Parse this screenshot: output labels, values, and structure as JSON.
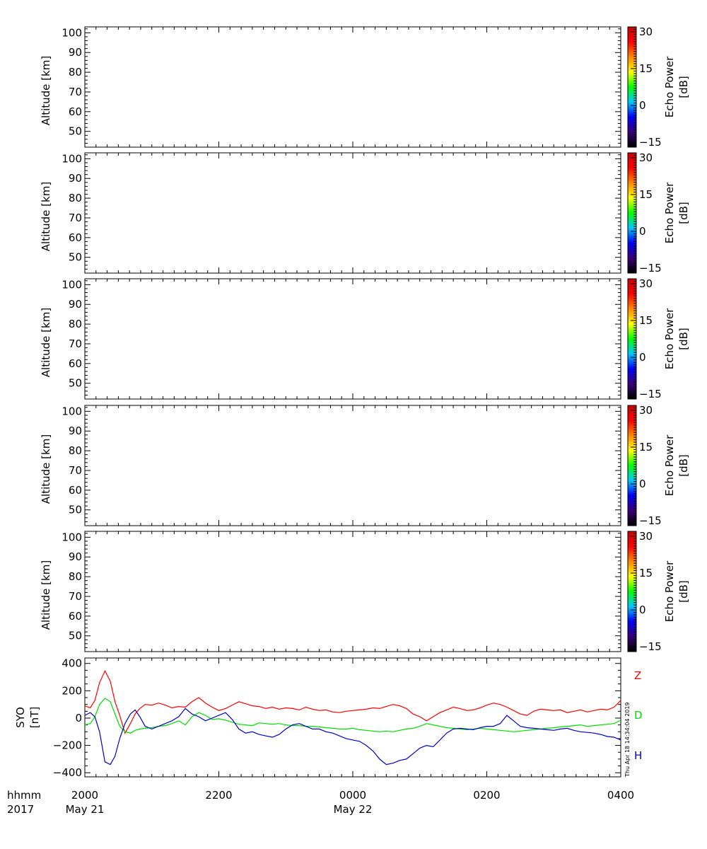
{
  "panels": [
    {
      "ylabel": "Altitude [km]",
      "yticks": [
        "50",
        "60",
        "70",
        "80",
        "90",
        "100"
      ],
      "ylim": [
        42,
        103
      ],
      "colorbar": {
        "label_line1": "Echo Power",
        "label_line2": "[dB]",
        "ticks": [
          "−15",
          "0",
          "15",
          "30"
        ]
      }
    },
    {
      "ylabel": "Altitude [km]",
      "yticks": [
        "50",
        "60",
        "70",
        "80",
        "90",
        "100"
      ],
      "ylim": [
        42,
        103
      ],
      "colorbar": {
        "label_line1": "Echo Power",
        "label_line2": "[dB]",
        "ticks": [
          "−15",
          "0",
          "15",
          "30"
        ]
      }
    },
    {
      "ylabel": "Altitude [km]",
      "yticks": [
        "50",
        "60",
        "70",
        "80",
        "90",
        "100"
      ],
      "ylim": [
        42,
        103
      ],
      "colorbar": {
        "label_line1": "Echo Power",
        "label_line2": "[dB]",
        "ticks": [
          "−15",
          "0",
          "15",
          "30"
        ]
      }
    },
    {
      "ylabel": "Altitude [km]",
      "yticks": [
        "50",
        "60",
        "70",
        "80",
        "90",
        "100"
      ],
      "ylim": [
        42,
        103
      ],
      "colorbar": {
        "label_line1": "Echo Power",
        "label_line2": "[dB]",
        "ticks": [
          "−15",
          "0",
          "15",
          "30"
        ]
      }
    },
    {
      "ylabel": "Altitude [km]",
      "yticks": [
        "50",
        "60",
        "70",
        "80",
        "90",
        "100"
      ],
      "ylim": [
        42,
        103
      ],
      "colorbar": {
        "label_line1": "Echo Power",
        "label_line2": "[dB]",
        "ticks": [
          "−15",
          "0",
          "15",
          "30"
        ]
      }
    }
  ],
  "colorbar_range": [
    -17,
    32
  ],
  "colormap": [
    "#000000",
    "#3a007a",
    "#0000ff",
    "#00c8ff",
    "#00ff00",
    "#ffff00",
    "#ff8800",
    "#ff0000",
    "#cc0000"
  ],
  "bottom_axis": {
    "row1_label": "hhmm",
    "row2_label": "2017",
    "ticks": [
      {
        "hour": 0,
        "label": "2000",
        "date": "May 21"
      },
      {
        "hour": 2,
        "label": "2200",
        "date": ""
      },
      {
        "hour": 4,
        "label": "0000",
        "date": "May 22"
      },
      {
        "hour": 6,
        "label": "0200",
        "date": ""
      },
      {
        "hour": 8,
        "label": "0400",
        "date": ""
      }
    ]
  },
  "timestamp": "Thu Apr 18 14:34:04 2019",
  "chart_data": [
    {
      "type": "heatmap",
      "ylabel": "Altitude [km]",
      "ylim": [
        42,
        103
      ],
      "colorbar_label": "Echo Power [dB]",
      "values": []
    },
    {
      "type": "heatmap",
      "ylabel": "Altitude [km]",
      "ylim": [
        42,
        103
      ],
      "colorbar_label": "Echo Power [dB]",
      "values": []
    },
    {
      "type": "heatmap",
      "ylabel": "Altitude [km]",
      "ylim": [
        42,
        103
      ],
      "colorbar_label": "Echo Power [dB]",
      "values": []
    },
    {
      "type": "heatmap",
      "ylabel": "Altitude [km]",
      "ylim": [
        42,
        103
      ],
      "colorbar_label": "Echo Power [dB]",
      "values": []
    },
    {
      "type": "heatmap",
      "ylabel": "Altitude [km]",
      "ylim": [
        42,
        103
      ],
      "colorbar_label": "Echo Power [dB]",
      "values": []
    },
    {
      "type": "line",
      "ylabel_line1": "SYO",
      "ylabel_line2": "[nT]",
      "yticks": [
        "−400",
        "−200",
        "0",
        "200",
        "400"
      ],
      "ylim": [
        -430,
        440
      ],
      "xlim_hours": [
        0,
        8
      ],
      "x_hours": [
        0,
        0.08,
        0.15,
        0.22,
        0.3,
        0.38,
        0.45,
        0.52,
        0.6,
        0.68,
        0.75,
        0.82,
        0.9,
        1.0,
        1.1,
        1.2,
        1.3,
        1.4,
        1.5,
        1.6,
        1.7,
        1.8,
        1.9,
        2.0,
        2.1,
        2.2,
        2.3,
        2.4,
        2.5,
        2.6,
        2.7,
        2.8,
        2.9,
        3.0,
        3.1,
        3.2,
        3.3,
        3.4,
        3.5,
        3.6,
        3.7,
        3.8,
        3.9,
        4.0,
        4.1,
        4.2,
        4.3,
        4.4,
        4.5,
        4.6,
        4.7,
        4.8,
        4.9,
        5.0,
        5.1,
        5.2,
        5.3,
        5.4,
        5.5,
        5.6,
        5.7,
        5.8,
        5.9,
        6.0,
        6.1,
        6.2,
        6.3,
        6.4,
        6.5,
        6.6,
        6.7,
        6.8,
        6.9,
        7.0,
        7.1,
        7.2,
        7.3,
        7.4,
        7.5,
        7.6,
        7.7,
        7.8,
        7.9,
        8.0
      ],
      "series": [
        {
          "name": "Z",
          "color": "#ff0000",
          "values": [
            90,
            75,
            130,
            260,
            345,
            270,
            120,
            20,
            -110,
            -40,
            30,
            70,
            100,
            95,
            110,
            95,
            75,
            85,
            80,
            120,
            150,
            110,
            80,
            55,
            70,
            95,
            120,
            105,
            90,
            85,
            70,
            80,
            65,
            75,
            70,
            60,
            80,
            65,
            55,
            60,
            45,
            40,
            50,
            55,
            60,
            65,
            75,
            70,
            85,
            100,
            90,
            70,
            30,
            10,
            -20,
            10,
            40,
            60,
            80,
            70,
            55,
            60,
            75,
            95,
            110,
            100,
            80,
            55,
            30,
            20,
            50,
            65,
            60,
            55,
            60,
            40,
            50,
            60,
            45,
            55,
            65,
            60,
            80,
            130
          ]
        },
        {
          "name": "D",
          "color": "#00dd00",
          "values": [
            -50,
            -40,
            10,
            100,
            145,
            120,
            30,
            -60,
            -100,
            -110,
            -90,
            -80,
            -75,
            -70,
            -60,
            -55,
            -40,
            -20,
            -50,
            10,
            40,
            20,
            -10,
            -5,
            -15,
            -30,
            -45,
            -50,
            -55,
            -35,
            -40,
            -45,
            -40,
            -50,
            -55,
            -55,
            -60,
            -60,
            -65,
            -70,
            -75,
            -80,
            -80,
            -75,
            -85,
            -90,
            -95,
            -100,
            -95,
            -100,
            -90,
            -80,
            -75,
            -60,
            -40,
            -50,
            -60,
            -70,
            -75,
            -80,
            -85,
            -80,
            -75,
            -80,
            -85,
            -90,
            -95,
            -100,
            -95,
            -90,
            -85,
            -80,
            -75,
            -70,
            -65,
            -60,
            -55,
            -50,
            -60,
            -55,
            -50,
            -45,
            -40,
            -15
          ]
        },
        {
          "name": "H",
          "color": "#0000cc",
          "values": [
            20,
            40,
            10,
            -100,
            -320,
            -340,
            -280,
            -150,
            -40,
            30,
            60,
            10,
            -60,
            -80,
            -60,
            -40,
            -20,
            10,
            70,
            30,
            10,
            -20,
            0,
            20,
            40,
            -10,
            -80,
            -110,
            -100,
            -120,
            -130,
            -140,
            -120,
            -80,
            -50,
            -40,
            -60,
            -80,
            -80,
            -100,
            -110,
            -130,
            -150,
            -160,
            -170,
            -200,
            -240,
            -300,
            -340,
            -330,
            -310,
            -300,
            -260,
            -220,
            -200,
            -210,
            -160,
            -110,
            -80,
            -75,
            -80,
            -85,
            -70,
            -60,
            -60,
            -40,
            20,
            -20,
            -60,
            -70,
            -75,
            -80,
            -85,
            -90,
            -80,
            -75,
            -90,
            -100,
            -105,
            -110,
            -120,
            -135,
            -140,
            -160
          ]
        }
      ],
      "series_labels": [
        "Z",
        "D",
        "H"
      ]
    }
  ]
}
